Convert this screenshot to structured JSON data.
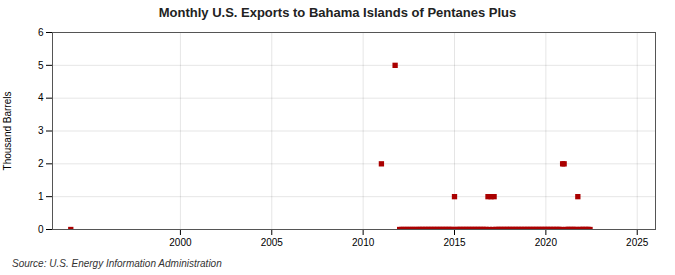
{
  "chart_data": {
    "type": "scatter",
    "title": "Monthly U.S. Exports to Bahama Islands of Pentanes Plus",
    "ylabel": "Thousand Barrels",
    "source": "Source: U.S. Energy Information Administration",
    "x": [
      1994.0,
      2011.0,
      2011.75,
      2012.0,
      2012.1,
      2012.2,
      2012.3,
      2012.4,
      2012.5,
      2012.6,
      2012.7,
      2012.8,
      2012.9,
      2013.0,
      2013.083,
      2013.167,
      2013.25,
      2013.333,
      2013.417,
      2013.5,
      2013.583,
      2013.667,
      2013.75,
      2013.833,
      2013.917,
      2014.0,
      2014.083,
      2014.167,
      2014.25,
      2014.333,
      2014.417,
      2014.5,
      2014.583,
      2014.667,
      2014.75,
      2014.833,
      2014.917,
      2015.0,
      2015.083,
      2015.167,
      2015.25,
      2015.333,
      2015.417,
      2015.5,
      2015.583,
      2015.667,
      2015.75,
      2015.833,
      2015.917,
      2016.0,
      2016.083,
      2016.167,
      2016.25,
      2016.333,
      2016.417,
      2016.5,
      2016.583,
      2016.667,
      2016.75,
      2016.833,
      2016.917,
      2017.0,
      2017.083,
      2017.167,
      2017.25,
      2017.333,
      2017.417,
      2017.5,
      2017.583,
      2017.667,
      2017.75,
      2017.833,
      2017.917,
      2018.0,
      2018.083,
      2018.167,
      2018.25,
      2018.333,
      2018.417,
      2018.5,
      2018.583,
      2018.667,
      2018.75,
      2018.833,
      2018.917,
      2019.0,
      2019.083,
      2019.167,
      2019.25,
      2019.333,
      2019.417,
      2019.5,
      2019.583,
      2019.667,
      2019.75,
      2019.833,
      2019.917,
      2020.0,
      2020.083,
      2020.167,
      2020.25,
      2020.333,
      2020.417,
      2020.5,
      2020.583,
      2020.667,
      2020.75,
      2020.833,
      2020.917,
      2021.0,
      2021.083,
      2021.167,
      2021.25,
      2021.333,
      2021.417,
      2021.5,
      2021.583,
      2021.667,
      2021.75,
      2021.833,
      2021.917,
      2022.0,
      2022.083,
      2022.167,
      2022.25,
      2022.333,
      2022.417
    ],
    "values": [
      0,
      2,
      5,
      0,
      0,
      0,
      0,
      0,
      0,
      0,
      0,
      0,
      0,
      0,
      0,
      0,
      0,
      0,
      0,
      0,
      0,
      0,
      0,
      0,
      0,
      0,
      0,
      0,
      0,
      0,
      0,
      0,
      0,
      0,
      0,
      0,
      0,
      1,
      0,
      0,
      0,
      0,
      0,
      0,
      0,
      0,
      0,
      0,
      0,
      0,
      0,
      0,
      0,
      0,
      0,
      0,
      0,
      0,
      0,
      1,
      0,
      1,
      0,
      1,
      0,
      0,
      0,
      0,
      0,
      0,
      0,
      0,
      0,
      0,
      0,
      0,
      0,
      0,
      0,
      0,
      0,
      0,
      0,
      0,
      0,
      0,
      0,
      0,
      0,
      0,
      0,
      0,
      0,
      0,
      0,
      0,
      0,
      0,
      0,
      0,
      0,
      0,
      0,
      0,
      0,
      0,
      0,
      0,
      2,
      2,
      0,
      0,
      0,
      0,
      0,
      0,
      0,
      0,
      1,
      0,
      0,
      0,
      0,
      0,
      0,
      0,
      0
    ],
    "color": "#aa0000",
    "marker": "square",
    "xlim": [
      1993,
      2026
    ],
    "ylim": [
      0,
      6
    ],
    "xticks": [
      2000,
      2005,
      2010,
      2015,
      2020,
      2025
    ],
    "yticks": [
      0,
      1,
      2,
      3,
      4,
      5,
      6
    ],
    "grid": true
  }
}
